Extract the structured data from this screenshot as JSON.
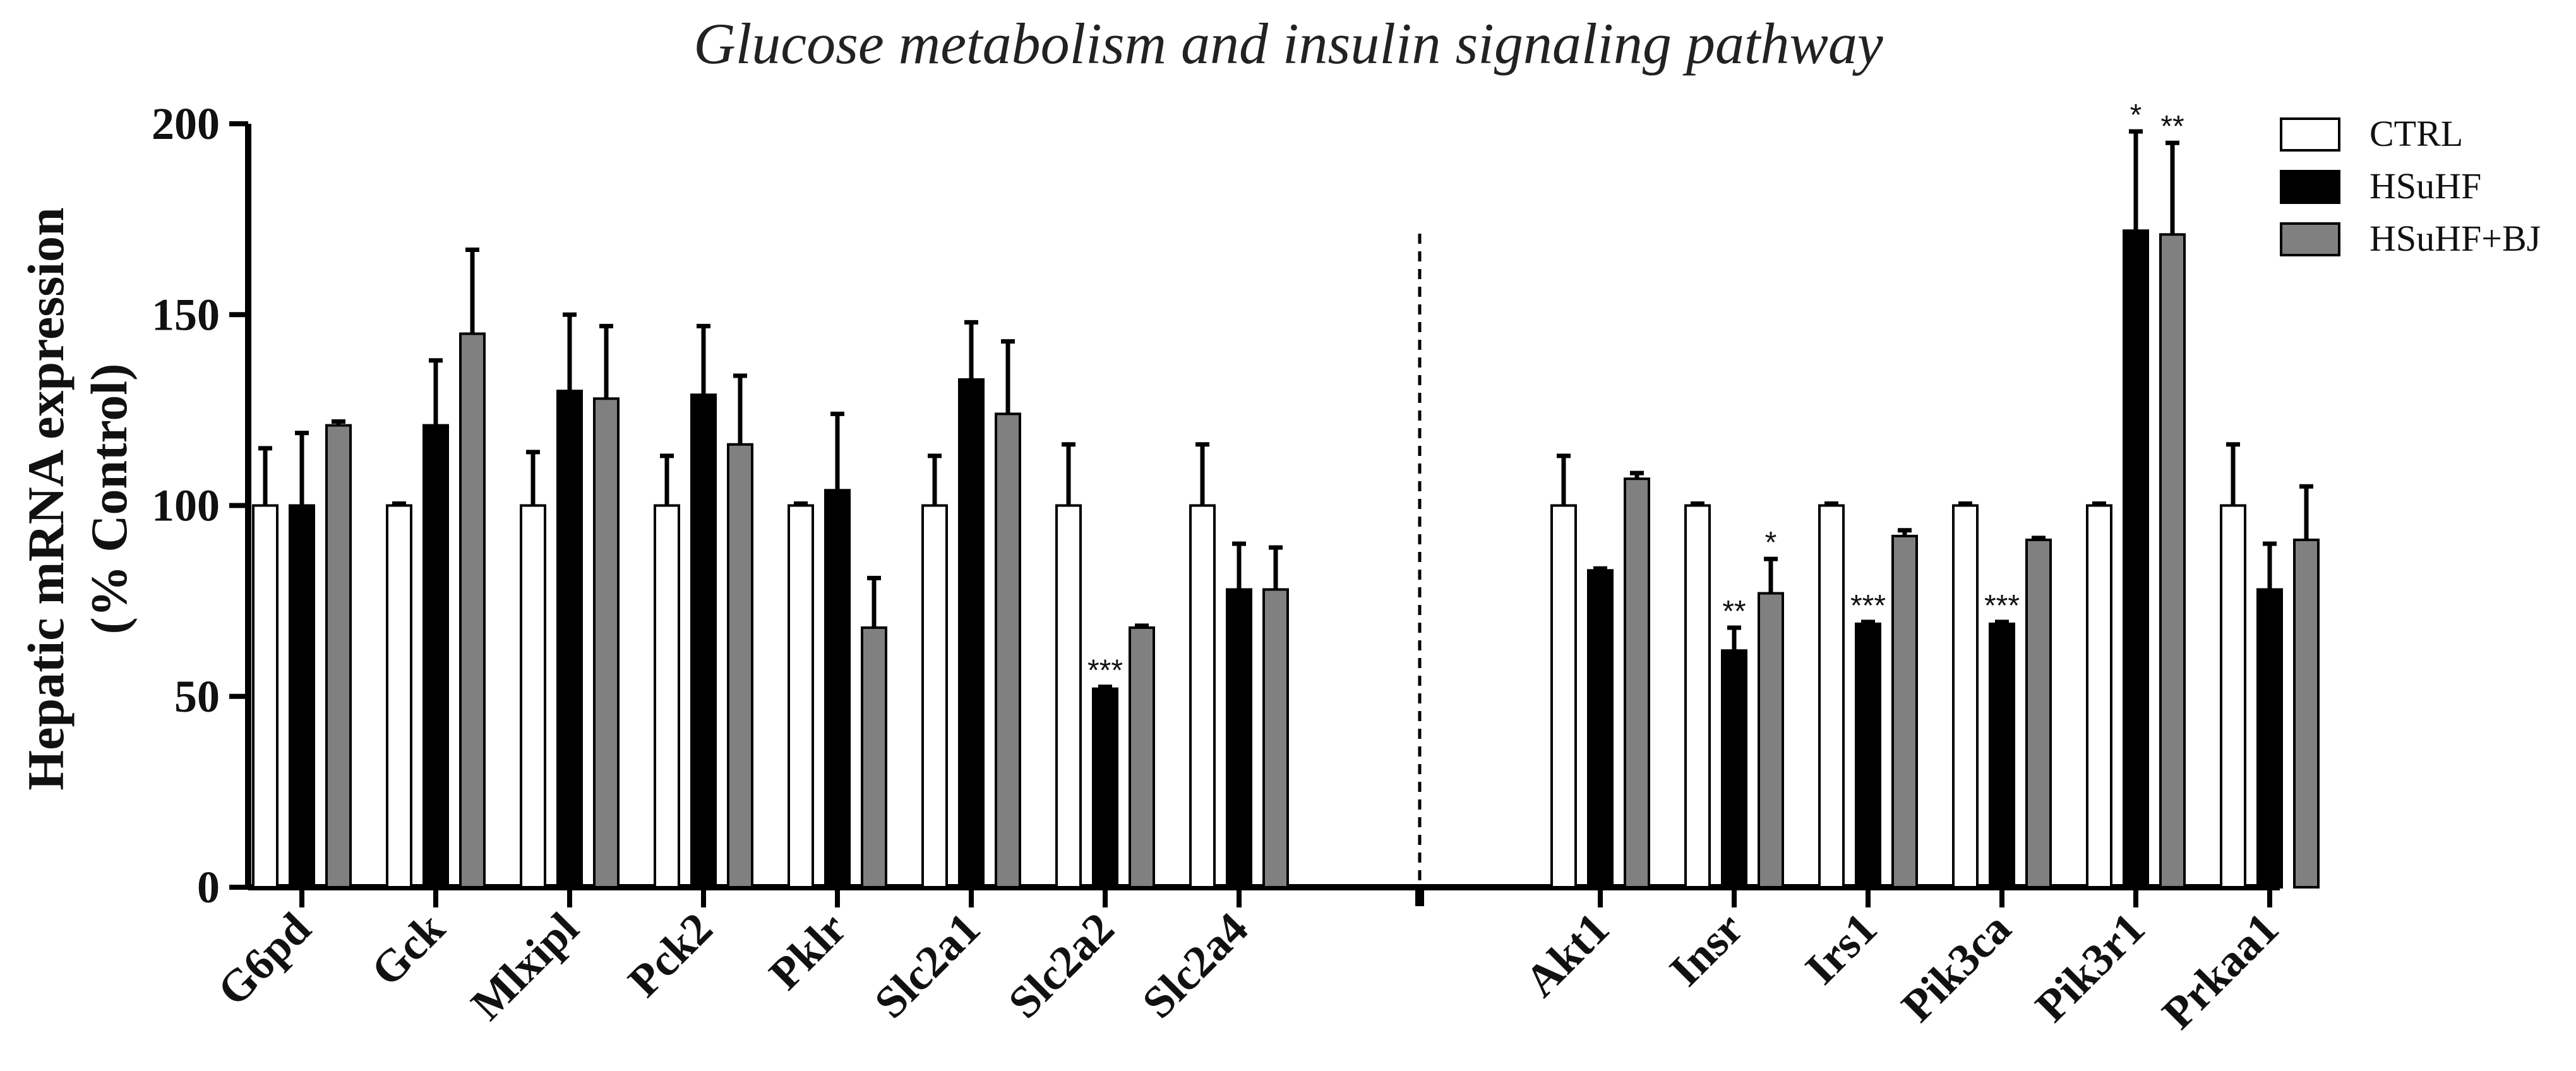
{
  "chart_data": {
    "type": "bar",
    "title": "Glucose metabolism and insulin signaling pathway",
    "ylabel": [
      "Hepatic mRNA expression",
      "(% Control)"
    ],
    "xlabel": "",
    "ylim": [
      0,
      200
    ],
    "yticks": [
      0,
      50,
      100,
      150,
      200
    ],
    "legend": {
      "position": "top-right"
    },
    "series": [
      {
        "name": "CTRL",
        "color": "#ffffff"
      },
      {
        "name": "HSuHF",
        "color": "#000000"
      },
      {
        "name": "HSuHF+BJ",
        "color": "#808080"
      }
    ],
    "groups": [
      {
        "label": "G6pd",
        "values": [
          100,
          100,
          121
        ],
        "errors": [
          15,
          19,
          1
        ],
        "sig": [
          "",
          "",
          ""
        ]
      },
      {
        "label": "Gck",
        "values": [
          100,
          121,
          145
        ],
        "errors": [
          0.5,
          17,
          22
        ],
        "sig": [
          "",
          "",
          ""
        ]
      },
      {
        "label": "Mlxipl",
        "values": [
          100,
          130,
          128
        ],
        "errors": [
          14,
          20,
          19
        ],
        "sig": [
          "",
          "",
          ""
        ]
      },
      {
        "label": "Pck2",
        "values": [
          100,
          129,
          116
        ],
        "errors": [
          13,
          18,
          18
        ],
        "sig": [
          "",
          "",
          ""
        ]
      },
      {
        "label": "Pklr",
        "values": [
          100,
          104,
          68
        ],
        "errors": [
          0.5,
          20,
          13
        ],
        "sig": [
          "",
          "",
          ""
        ]
      },
      {
        "label": "Slc2a1",
        "values": [
          100,
          133,
          124
        ],
        "errors": [
          13,
          15,
          19
        ],
        "sig": [
          "",
          "",
          ""
        ]
      },
      {
        "label": "Slc2a2",
        "values": [
          100,
          52,
          68
        ],
        "errors": [
          16,
          0.5,
          0.5
        ],
        "sig": [
          "",
          "***",
          ""
        ]
      },
      {
        "label": "Slc2a4",
        "values": [
          100,
          78,
          78
        ],
        "errors": [
          16,
          12,
          11
        ],
        "sig": [
          "",
          "",
          ""
        ]
      },
      {
        "label": "Akt1",
        "values": [
          100,
          83,
          107
        ],
        "errors": [
          13,
          0.5,
          1.5
        ],
        "sig": [
          "",
          "",
          ""
        ]
      },
      {
        "label": "Insr",
        "values": [
          100,
          62,
          77
        ],
        "errors": [
          0.5,
          6,
          9
        ],
        "sig": [
          "",
          "**",
          "*"
        ]
      },
      {
        "label": "Irs1",
        "values": [
          100,
          69,
          92
        ],
        "errors": [
          0.5,
          0.5,
          1.5
        ],
        "sig": [
          "",
          "***",
          ""
        ]
      },
      {
        "label": "Pik3ca",
        "values": [
          100,
          69,
          91
        ],
        "errors": [
          0.5,
          0.5,
          0.5
        ],
        "sig": [
          "",
          "***",
          ""
        ]
      },
      {
        "label": "Pik3r1",
        "values": [
          100,
          172,
          171
        ],
        "errors": [
          0.5,
          26,
          24
        ],
        "sig": [
          "",
          "*",
          "**"
        ]
      },
      {
        "label": "Prkaa1",
        "values": [
          100,
          78,
          91
        ],
        "errors": [
          16,
          12,
          14
        ],
        "sig": [
          "",
          "",
          ""
        ]
      }
    ],
    "divider_after_group": 7
  }
}
